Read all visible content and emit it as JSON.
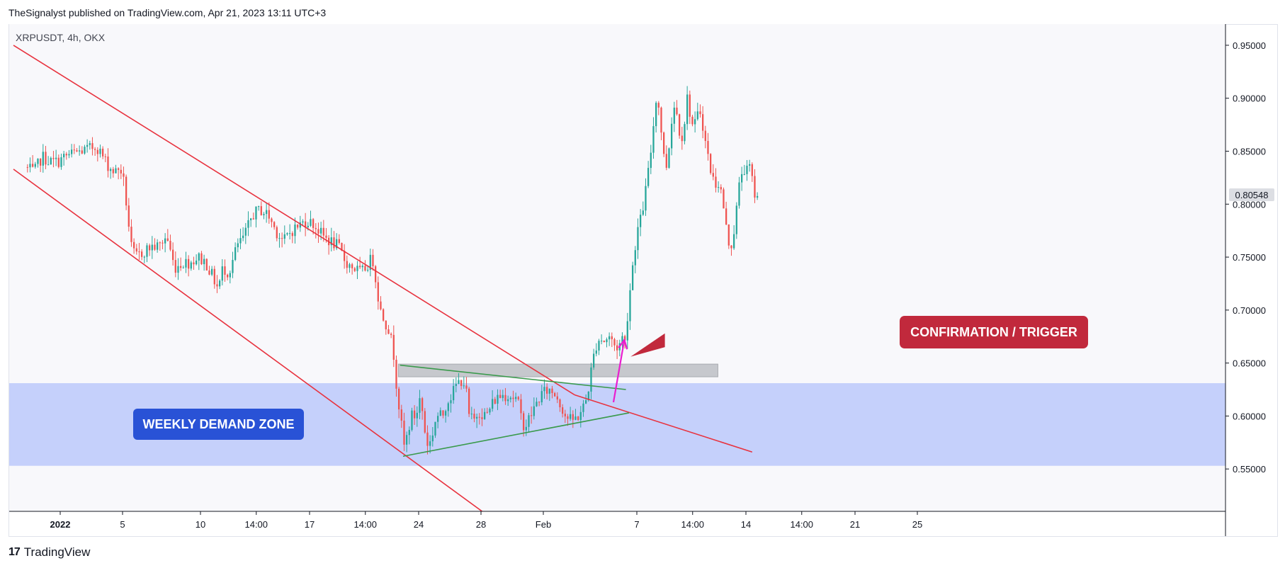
{
  "header": {
    "attribution": "TheSignalyst published on TradingView.com, Apr 21, 2023 13:11 UTC+3"
  },
  "symbol": {
    "text": "XRPUSDT, 4h, OKX"
  },
  "footer": {
    "brand": "TradingView",
    "logo": "17"
  },
  "annotations": {
    "weekly_demand_zone": "WEEKLY DEMAND ZONE",
    "confirmation": "CONFIRMATION / TRIGGER"
  },
  "colors": {
    "up": "#26a69a",
    "down": "#ef5350",
    "channel": "#e8333f",
    "triangle": "#3a9a4c",
    "demand_zone": "#c2cdfb",
    "resistance_box": "#c6c8cd",
    "arrow": "#e91ecf",
    "zone_label_bg": "#2952d6",
    "confirm_label_bg": "#c1293c"
  },
  "chart_data": {
    "type": "candlestick",
    "title": "XRPUSDT, 4h, OKX",
    "ylim": [
      0.51,
      0.97
    ],
    "y_ticks": [
      "0.95000",
      "0.90000",
      "0.85000",
      "0.80000",
      "0.75000",
      "0.70000",
      "0.65000",
      "0.60000",
      "0.55000"
    ],
    "x_ticks": [
      {
        "label": "2022",
        "bold": true,
        "day": 0
      },
      {
        "label": "5",
        "day": 4
      },
      {
        "label": "10",
        "day": 9
      },
      {
        "label": "14:00",
        "day": 12.58
      },
      {
        "label": "17",
        "day": 16
      },
      {
        "label": "14:00",
        "day": 19.58
      },
      {
        "label": "24",
        "day": 23
      },
      {
        "label": "28",
        "day": 27
      },
      {
        "label": "Feb",
        "day": 31
      },
      {
        "label": "7",
        "day": 37
      },
      {
        "label": "14:00",
        "day": 40.58
      },
      {
        "label": "14",
        "day": 44
      },
      {
        "label": "14:00",
        "day": 47.58
      },
      {
        "label": "21",
        "day": 51
      },
      {
        "label": "25",
        "day": 55
      }
    ],
    "last_price": "0.80548",
    "path": [
      [
        -2.1,
        0.835
      ],
      [
        -1.5,
        0.83
      ],
      [
        -1.0,
        0.845
      ],
      [
        -0.5,
        0.84
      ],
      [
        0.0,
        0.84
      ],
      [
        0.5,
        0.845
      ],
      [
        1.0,
        0.848
      ],
      [
        1.5,
        0.85
      ],
      [
        2.0,
        0.852
      ],
      [
        2.5,
        0.855
      ],
      [
        2.9,
        0.845
      ],
      [
        3.3,
        0.835
      ],
      [
        3.7,
        0.83
      ],
      [
        4.0,
        0.835
      ],
      [
        4.2,
        0.825
      ],
      [
        4.5,
        0.79
      ],
      [
        4.7,
        0.76
      ],
      [
        5.0,
        0.75
      ],
      [
        5.5,
        0.755
      ],
      [
        6.0,
        0.76
      ],
      [
        6.5,
        0.76
      ],
      [
        7.0,
        0.77
      ],
      [
        7.5,
        0.74
      ],
      [
        8.0,
        0.745
      ],
      [
        8.5,
        0.745
      ],
      [
        9.0,
        0.75
      ],
      [
        9.5,
        0.745
      ],
      [
        10.0,
        0.73
      ],
      [
        10.3,
        0.72
      ],
      [
        10.6,
        0.74
      ],
      [
        11.0,
        0.735
      ],
      [
        11.5,
        0.76
      ],
      [
        12.0,
        0.77
      ],
      [
        12.5,
        0.79
      ],
      [
        13.0,
        0.795
      ],
      [
        13.5,
        0.79
      ],
      [
        14.0,
        0.775
      ],
      [
        14.5,
        0.765
      ],
      [
        15.0,
        0.775
      ],
      [
        15.5,
        0.78
      ],
      [
        16.0,
        0.785
      ],
      [
        16.5,
        0.78
      ],
      [
        17.0,
        0.77
      ],
      [
        17.5,
        0.765
      ],
      [
        18.0,
        0.76
      ],
      [
        18.5,
        0.745
      ],
      [
        19.0,
        0.74
      ],
      [
        19.5,
        0.735
      ],
      [
        20.0,
        0.745
      ],
      [
        20.2,
        0.75
      ],
      [
        20.5,
        0.72
      ],
      [
        20.7,
        0.7
      ],
      [
        21.0,
        0.69
      ],
      [
        21.3,
        0.68
      ],
      [
        21.6,
        0.655
      ],
      [
        21.8,
        0.62
      ],
      [
        22.0,
        0.6
      ],
      [
        22.2,
        0.57
      ],
      [
        22.4,
        0.58
      ],
      [
        22.7,
        0.6
      ],
      [
        23.0,
        0.6
      ],
      [
        23.3,
        0.62
      ],
      [
        23.5,
        0.59
      ],
      [
        23.8,
        0.57
      ],
      [
        24.0,
        0.58
      ],
      [
        24.3,
        0.6
      ],
      [
        24.7,
        0.6
      ],
      [
        25.0,
        0.615
      ],
      [
        25.3,
        0.62
      ],
      [
        25.6,
        0.63
      ],
      [
        26.0,
        0.635
      ],
      [
        26.2,
        0.625
      ],
      [
        26.4,
        0.6
      ],
      [
        26.7,
        0.595
      ],
      [
        27.0,
        0.605
      ],
      [
        27.5,
        0.6
      ],
      [
        28.0,
        0.615
      ],
      [
        28.5,
        0.62
      ],
      [
        29.0,
        0.62
      ],
      [
        29.5,
        0.615
      ],
      [
        29.8,
        0.595
      ],
      [
        30.0,
        0.59
      ],
      [
        30.5,
        0.605
      ],
      [
        31.0,
        0.62
      ],
      [
        31.5,
        0.625
      ],
      [
        32.0,
        0.62
      ],
      [
        32.3,
        0.61
      ],
      [
        32.6,
        0.6
      ],
      [
        33.0,
        0.595
      ],
      [
        33.4,
        0.6
      ],
      [
        33.8,
        0.61
      ],
      [
        34.0,
        0.62
      ],
      [
        34.2,
        0.64
      ],
      [
        34.5,
        0.665
      ],
      [
        34.8,
        0.675
      ],
      [
        35.0,
        0.67
      ],
      [
        35.4,
        0.675
      ],
      [
        35.8,
        0.665
      ],
      [
        36.0,
        0.665
      ],
      [
        36.2,
        0.675
      ],
      [
        36.4,
        0.67
      ],
      [
        36.6,
        0.7
      ],
      [
        36.8,
        0.73
      ],
      [
        37.0,
        0.755
      ],
      [
        37.2,
        0.775
      ],
      [
        37.4,
        0.785
      ],
      [
        37.6,
        0.8
      ],
      [
        37.8,
        0.82
      ],
      [
        38.0,
        0.84
      ],
      [
        38.2,
        0.87
      ],
      [
        38.4,
        0.9
      ],
      [
        38.6,
        0.89
      ],
      [
        38.8,
        0.86
      ],
      [
        39.0,
        0.83
      ],
      [
        39.2,
        0.85
      ],
      [
        39.4,
        0.88
      ],
      [
        39.6,
        0.895
      ],
      [
        39.8,
        0.88
      ],
      [
        40.0,
        0.86
      ],
      [
        40.2,
        0.875
      ],
      [
        40.4,
        0.9
      ],
      [
        40.6,
        0.885
      ],
      [
        40.8,
        0.87
      ],
      [
        41.0,
        0.88
      ],
      [
        41.2,
        0.89
      ],
      [
        41.4,
        0.875
      ],
      [
        41.6,
        0.855
      ],
      [
        41.8,
        0.84
      ],
      [
        42.0,
        0.825
      ],
      [
        42.2,
        0.82
      ],
      [
        42.4,
        0.82
      ],
      [
        42.6,
        0.81
      ],
      [
        42.8,
        0.79
      ],
      [
        43.0,
        0.765
      ],
      [
        43.2,
        0.76
      ],
      [
        43.4,
        0.775
      ],
      [
        43.6,
        0.8
      ],
      [
        43.8,
        0.825
      ],
      [
        44.0,
        0.835
      ],
      [
        44.2,
        0.83
      ],
      [
        44.4,
        0.835
      ],
      [
        44.6,
        0.82
      ],
      [
        44.8,
        0.805
      ]
    ],
    "demand_zone": [
      0.553,
      0.631
    ],
    "resistance_box": {
      "x": [
        21.7,
        42.2
      ],
      "y": [
        0.637,
        0.649
      ]
    },
    "channel_upper": [
      [
        -3.0,
        0.95
      ],
      [
        33.0,
        0.62
      ],
      [
        44.4,
        0.566
      ]
    ],
    "channel_lower": [
      [
        -3.0,
        0.833
      ],
      [
        28.0,
        0.5
      ]
    ],
    "triangle_upper": [
      [
        21.8,
        0.648
      ],
      [
        36.3,
        0.625
      ]
    ],
    "triangle_lower": [
      [
        22.0,
        0.562
      ],
      [
        36.5,
        0.603
      ]
    ],
    "arrow": {
      "from": [
        35.5,
        0.613
      ],
      "to": [
        36.2,
        0.672
      ]
    },
    "label_pointer": [
      [
        36.6,
        0.656
      ],
      [
        38.8,
        0.665
      ],
      [
        38.8,
        0.678
      ]
    ]
  }
}
